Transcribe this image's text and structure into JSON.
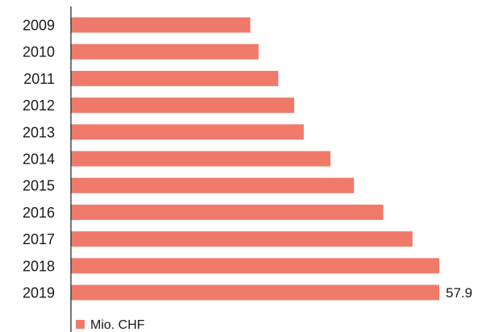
{
  "chart_data": {
    "type": "bar",
    "orientation": "horizontal",
    "categories": [
      "2009",
      "2010",
      "2011",
      "2012",
      "2013",
      "2014",
      "2015",
      "2016",
      "2017",
      "2018",
      "2019"
    ],
    "series": [
      {
        "name": "Mio. CHF",
        "values": [
          28.2,
          29.5,
          32.6,
          35.1,
          36.6,
          40.8,
          44.5,
          49.1,
          53.7,
          57.9,
          57.9
        ],
        "color": "#f07a6a"
      }
    ],
    "data_labels": [
      "",
      "",
      "",
      "",
      "",
      "",
      "",
      "",
      "",
      "",
      "57.9"
    ],
    "xlim": [
      0,
      57.9
    ],
    "grid": false,
    "legend": {
      "placement": "bottom-left"
    }
  }
}
